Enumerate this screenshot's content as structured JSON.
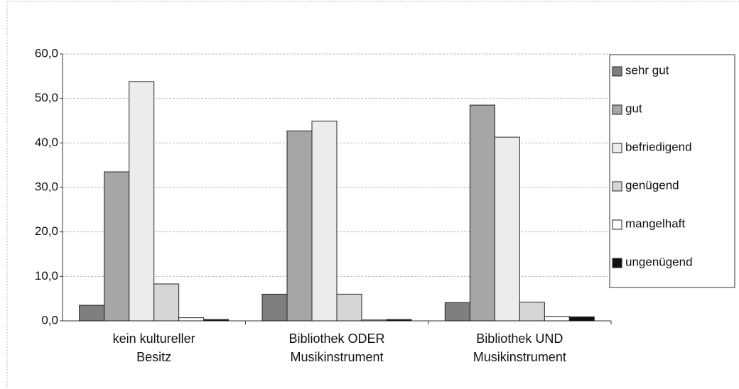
{
  "chart_data": {
    "type": "bar",
    "categories": [
      "kein kultureller\nBesitz",
      "Bibliothek ODER\nMusikinstrument",
      "Bibliothek UND\nMusikinstrument"
    ],
    "series": [
      {
        "name": "sehr gut",
        "color": "#7f7f7f",
        "values": [
          3.5,
          6.0,
          4.1
        ]
      },
      {
        "name": "gut",
        "color": "#a6a6a6",
        "values": [
          33.5,
          42.7,
          48.5
        ]
      },
      {
        "name": "befriedigend",
        "color": "#ececec",
        "values": [
          53.8,
          44.9,
          41.3
        ]
      },
      {
        "name": "genügend",
        "color": "#d6d6d6",
        "values": [
          8.3,
          6.0,
          4.2
        ]
      },
      {
        "name": "mangelhaft",
        "color": "#ffffff",
        "values": [
          0.7,
          0.2,
          1.0
        ]
      },
      {
        "name": "ungenügend",
        "color": "#111111",
        "values": [
          0.3,
          0.3,
          0.9
        ]
      }
    ],
    "ylim": [
      0,
      60
    ],
    "yticks": [
      {
        "value": 0,
        "label": "0,0"
      },
      {
        "value": 10,
        "label": "10,0"
      },
      {
        "value": 20,
        "label": "20,0"
      },
      {
        "value": 30,
        "label": "30,0"
      },
      {
        "value": 40,
        "label": "40,0"
      },
      {
        "value": 50,
        "label": "50,0"
      },
      {
        "value": 60,
        "label": "60,0"
      }
    ],
    "grid": true,
    "legend": "right"
  }
}
